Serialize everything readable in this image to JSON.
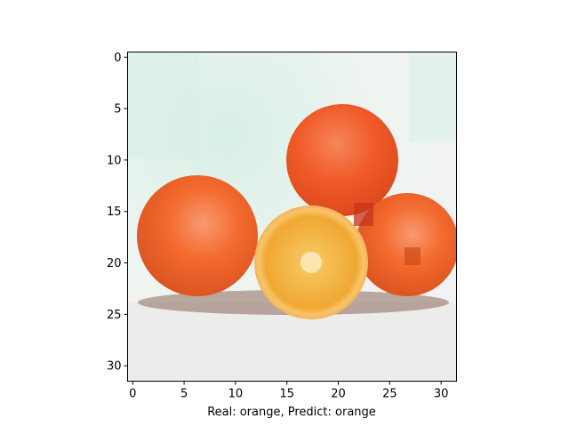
{
  "figure": {
    "xlabel": "Real: orange, Predict: orange",
    "x_ticks": [
      "0",
      "5",
      "10",
      "15",
      "20",
      "25",
      "30"
    ],
    "y_ticks": [
      "0",
      "5",
      "10",
      "15",
      "20",
      "25",
      "30"
    ],
    "image_grid": [
      32,
      32
    ]
  },
  "colors": {
    "background": "#ffffff",
    "frame": "#000000",
    "backdrop": "#eef4f0",
    "backdrop_mint": "#d8f0e6",
    "table": "#ececec",
    "orange_body": "#f46a2e",
    "orange_highlight": "#f79a70",
    "orange_shadow": "#cf4a1c",
    "slice_rim": "#f9c46a",
    "slice_flesh": "#f0a832",
    "slice_center": "#fbe5b0",
    "shadow_dark": "#8a6a5a"
  },
  "image": {
    "description_icon": "photo-thumbnail-icon"
  }
}
